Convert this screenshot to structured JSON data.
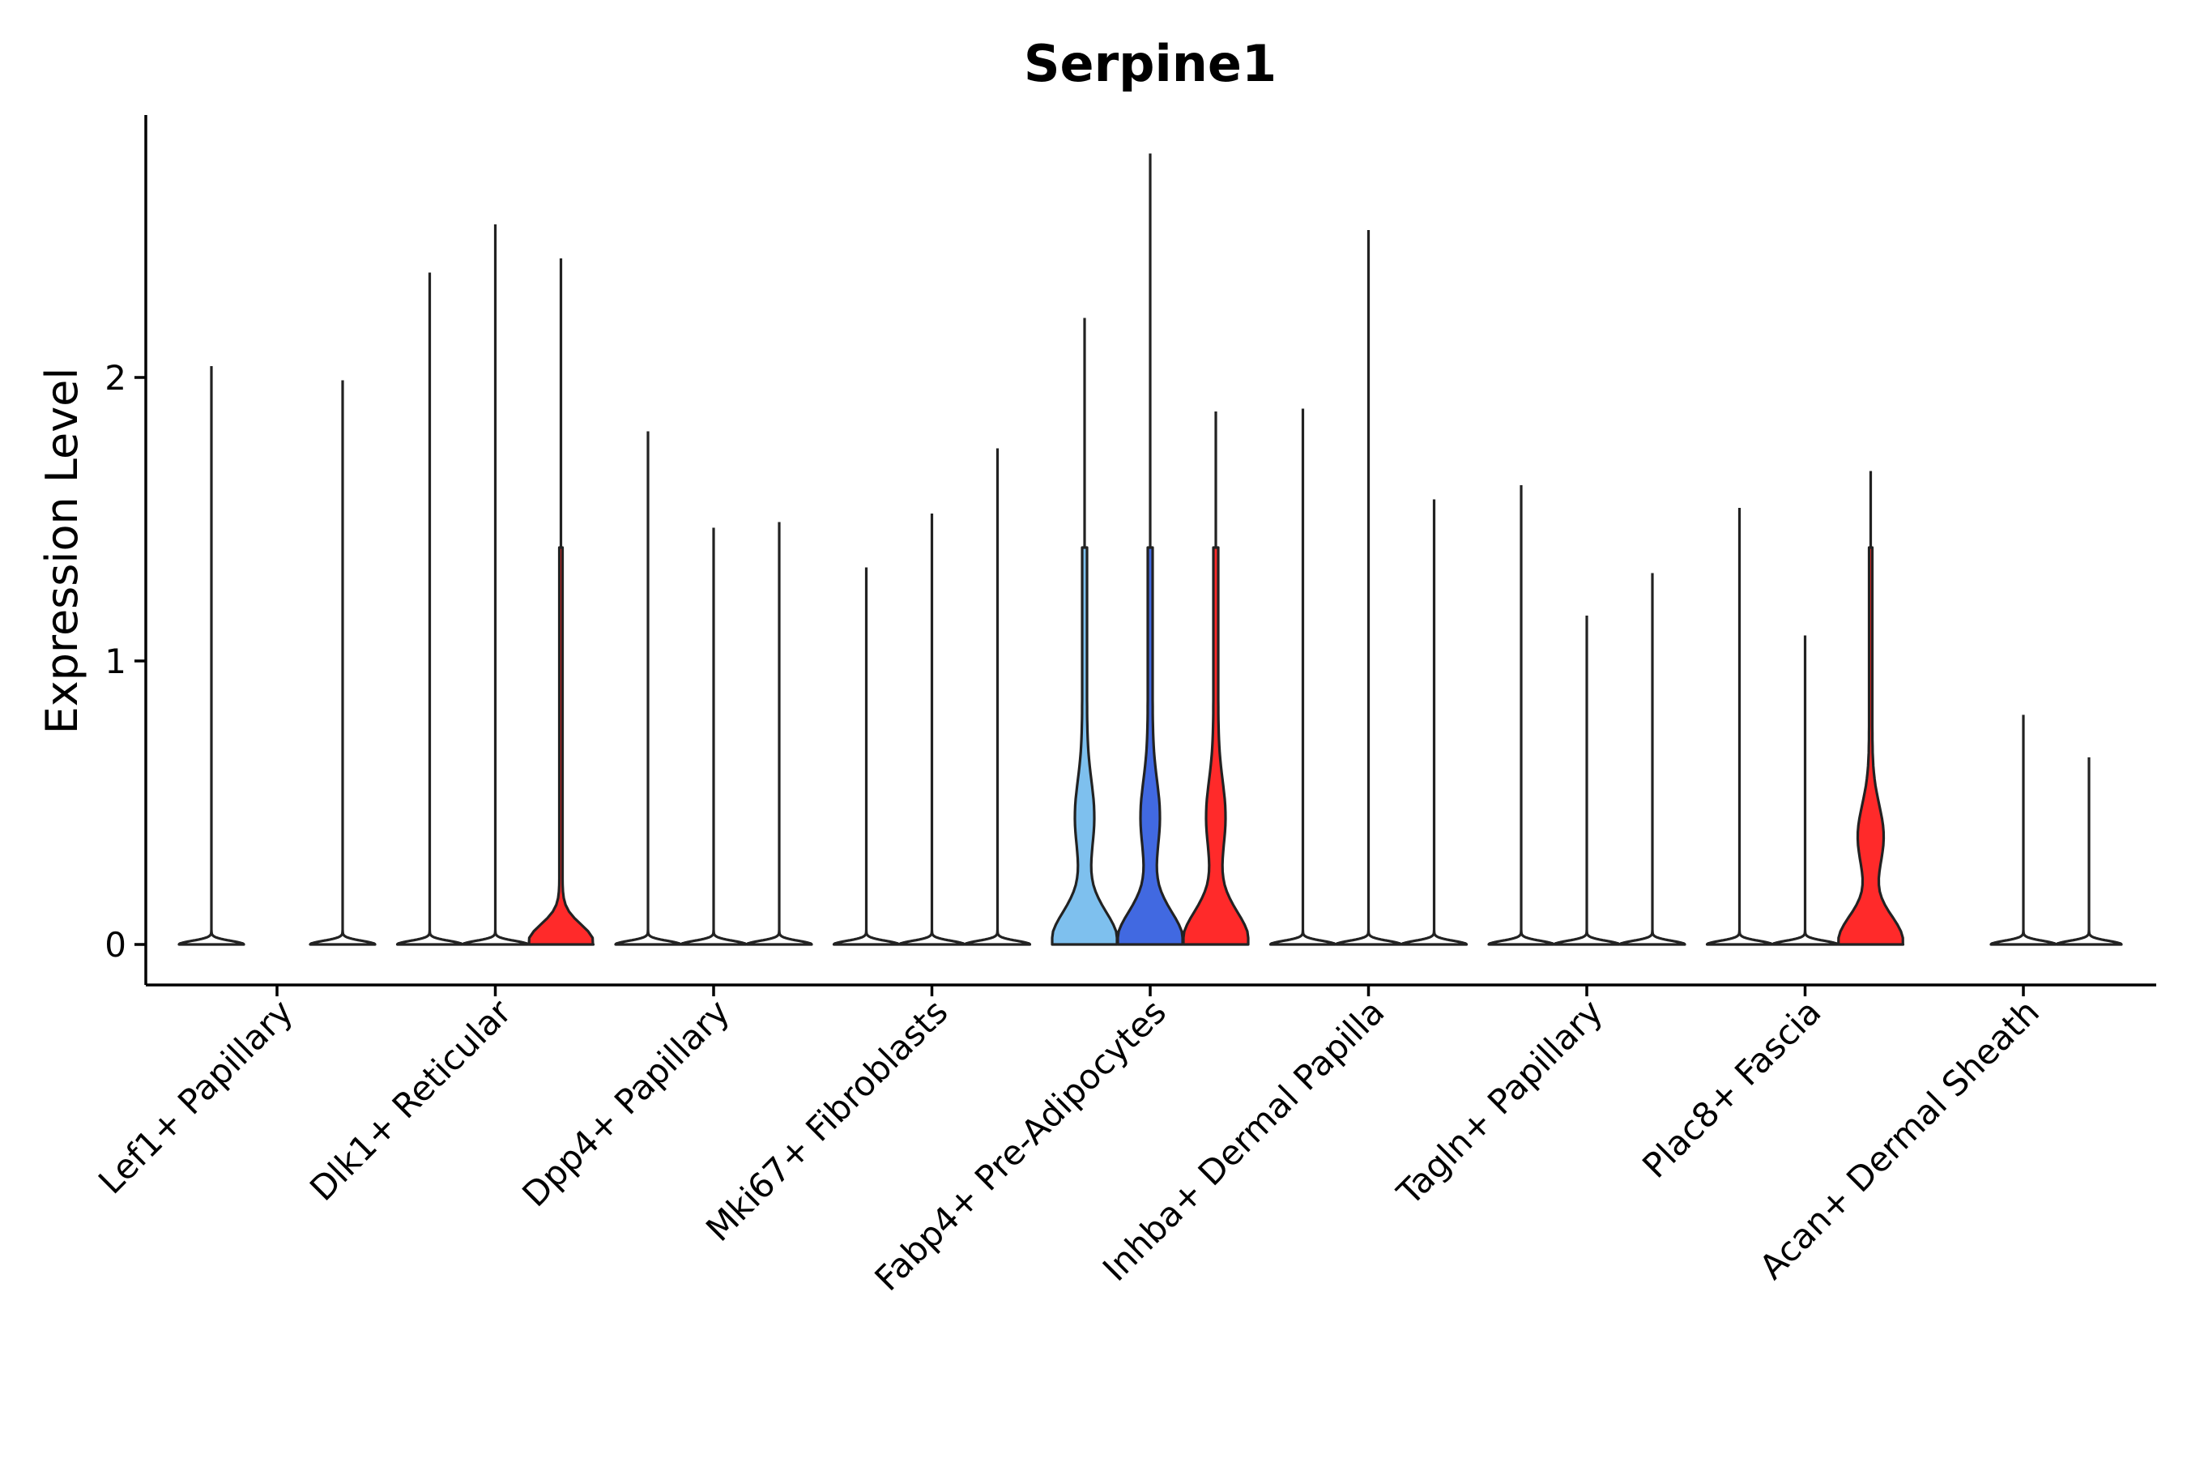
{
  "chart_data": {
    "type": "violin",
    "title": "Serpine1",
    "xlabel": "",
    "ylabel": "Expression Level",
    "ylim": [
      -0.14,
      2.95
    ],
    "yticks": [
      0,
      1,
      2
    ],
    "categories": [
      "Lef1+ Papillary",
      "Dlk1+ Reticular",
      "Dpp4+ Papillary",
      "Mki67+ Fibroblasts",
      "Fabp4+ Pre-Adipocytes",
      "Inhba+ Dermal Papilla",
      "Tagln+ Papillary",
      "Plac8+ Fascia",
      "Acan+ Dermal Sheath"
    ],
    "violins": [
      {
        "category": 0,
        "offset": -1,
        "max": 2.04,
        "fill": "#ffffff",
        "shape": "flat"
      },
      {
        "category": 0,
        "offset": 1,
        "max": 1.99,
        "fill": "#ffffff",
        "shape": "flat"
      },
      {
        "category": 1,
        "offset": -1,
        "max": 2.37,
        "fill": "#ffffff",
        "shape": "flat"
      },
      {
        "category": 1,
        "offset": 0,
        "max": 2.54,
        "fill": "#ffffff",
        "shape": "flat"
      },
      {
        "category": 1,
        "offset": 1,
        "max": 2.42,
        "fill": "#ff2a2a",
        "shape": "small"
      },
      {
        "category": 2,
        "offset": -1,
        "max": 1.81,
        "fill": "#ffffff",
        "shape": "flat"
      },
      {
        "category": 2,
        "offset": 0,
        "max": 1.47,
        "fill": "#ffffff",
        "shape": "flat"
      },
      {
        "category": 2,
        "offset": 1,
        "max": 1.49,
        "fill": "#ffffff",
        "shape": "flat"
      },
      {
        "category": 3,
        "offset": -1,
        "max": 1.33,
        "fill": "#ffffff",
        "shape": "flat"
      },
      {
        "category": 3,
        "offset": 0,
        "max": 1.52,
        "fill": "#ffffff",
        "shape": "flat"
      },
      {
        "category": 3,
        "offset": 1,
        "max": 1.75,
        "fill": "#ffffff",
        "shape": "flat"
      },
      {
        "category": 4,
        "offset": -1,
        "max": 2.21,
        "fill": "#7ec0ee",
        "shape": "big"
      },
      {
        "category": 4,
        "offset": 0,
        "max": 2.79,
        "fill": "#4169e1",
        "shape": "big"
      },
      {
        "category": 4,
        "offset": 1,
        "max": 1.88,
        "fill": "#ff2a2a",
        "shape": "big"
      },
      {
        "category": 5,
        "offset": -1,
        "max": 1.89,
        "fill": "#ffffff",
        "shape": "flat"
      },
      {
        "category": 5,
        "offset": 0,
        "max": 2.52,
        "fill": "#ffffff",
        "shape": "flat"
      },
      {
        "category": 5,
        "offset": 1,
        "max": 1.57,
        "fill": "#ffffff",
        "shape": "flat"
      },
      {
        "category": 6,
        "offset": -1,
        "max": 1.62,
        "fill": "#ffffff",
        "shape": "flat"
      },
      {
        "category": 6,
        "offset": 0,
        "max": 1.16,
        "fill": "#ffffff",
        "shape": "flat"
      },
      {
        "category": 6,
        "offset": 1,
        "max": 1.31,
        "fill": "#ffffff",
        "shape": "flat"
      },
      {
        "category": 7,
        "offset": -1,
        "max": 1.54,
        "fill": "#ffffff",
        "shape": "flat"
      },
      {
        "category": 7,
        "offset": 0,
        "max": 1.09,
        "fill": "#ffffff",
        "shape": "flat"
      },
      {
        "category": 7,
        "offset": 1,
        "max": 1.67,
        "fill": "#ff2a2a",
        "shape": "medium"
      },
      {
        "category": 8,
        "offset": 0,
        "max": 0.81,
        "fill": "#ffffff",
        "shape": "flat"
      },
      {
        "category": 8,
        "offset": 1,
        "max": 0.66,
        "fill": "#ffffff",
        "shape": "flat"
      }
    ],
    "legend": "none",
    "grid": false
  }
}
